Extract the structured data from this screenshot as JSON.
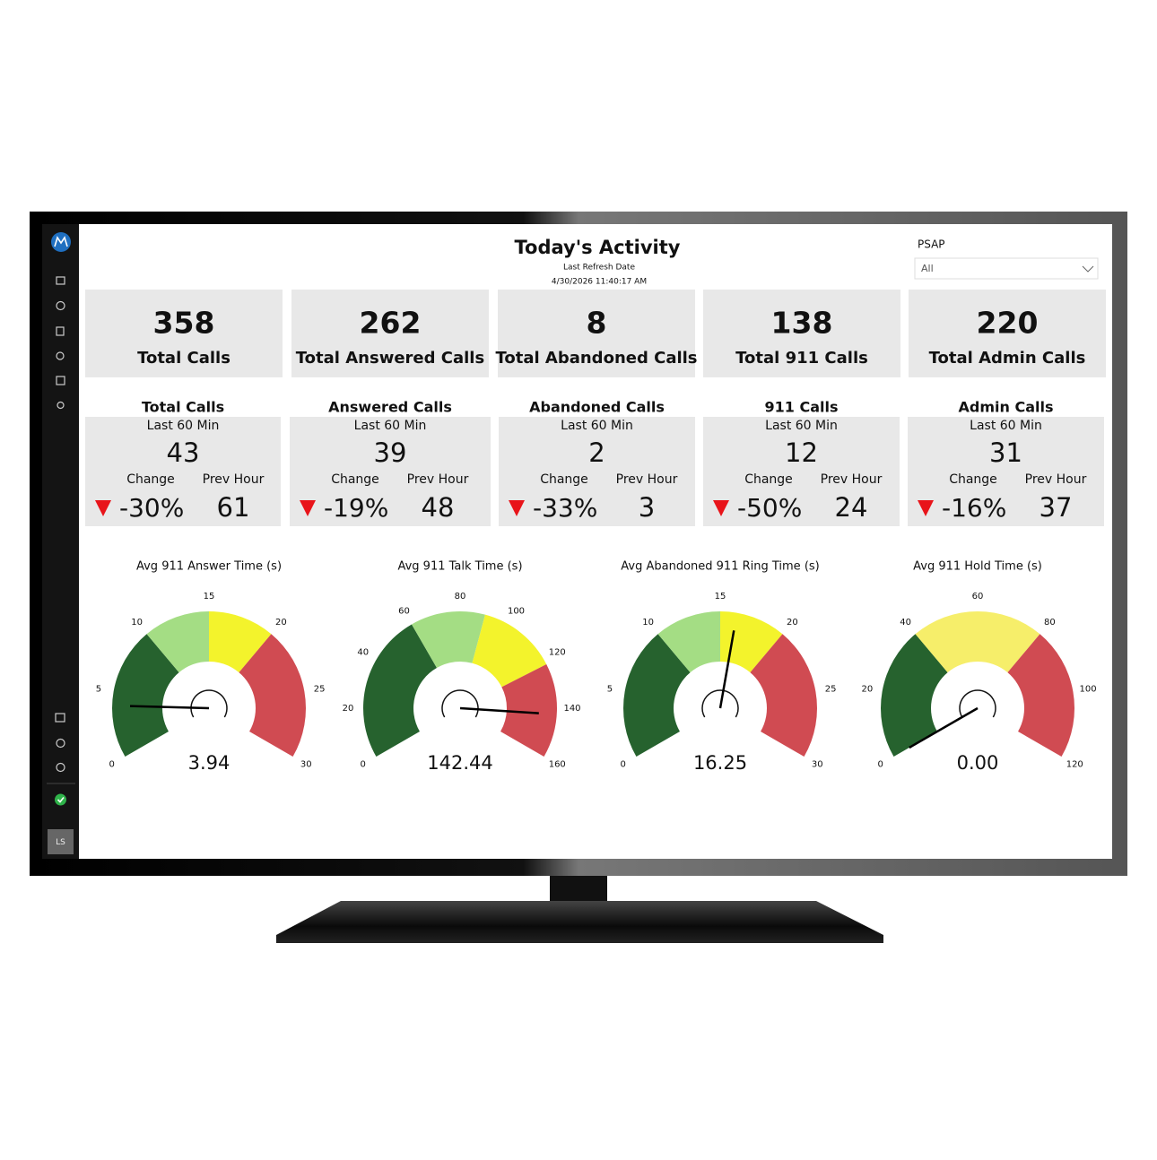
{
  "header": {
    "title": "Today's Activity",
    "refresh_label": "Last Refresh Date",
    "refresh_date": "4/30/2026 11:40:17 AM"
  },
  "filter": {
    "label": "PSAP",
    "value": "All"
  },
  "sidebar": {
    "user_initials": "LS"
  },
  "kpis": [
    {
      "value": 358,
      "label": "Total Calls"
    },
    {
      "value": 262,
      "label": "Total Answered Calls"
    },
    {
      "value": 8,
      "label": "Total Abandoned Calls"
    },
    {
      "value": 138,
      "label": "Total 911 Calls"
    },
    {
      "value": 220,
      "label": "Total Admin Calls"
    }
  ],
  "hourly": [
    {
      "title": "Total Calls",
      "subtitle": "Last 60 Min",
      "value": 43,
      "change_label": "Change",
      "prev_label": "Prev Hour",
      "change": "-30%",
      "prev": 61
    },
    {
      "title": "Answered Calls",
      "subtitle": "Last 60 Min",
      "value": 39,
      "change_label": "Change",
      "prev_label": "Prev Hour",
      "change": "-19%",
      "prev": 48
    },
    {
      "title": "Abandoned Calls",
      "subtitle": "Last 60 Min",
      "value": 2,
      "change_label": "Change",
      "prev_label": "Prev Hour",
      "change": "-33%",
      "prev": 3
    },
    {
      "title": "911 Calls",
      "subtitle": "Last 60 Min",
      "value": 12,
      "change_label": "Change",
      "prev_label": "Prev Hour",
      "change": "-50%",
      "prev": 24
    },
    {
      "title": "Admin Calls",
      "subtitle": "Last 60 Min",
      "value": 31,
      "change_label": "Change",
      "prev_label": "Prev Hour",
      "change": "-16%",
      "prev": 37
    }
  ],
  "chart_data": [
    {
      "type": "gauge",
      "title": "Avg 911 Answer Time (s)",
      "values": [
        3.94
      ],
      "lim": [
        0,
        30
      ],
      "ticks": [
        0,
        5,
        10,
        15,
        20,
        25,
        30
      ],
      "bands": [
        {
          "from": 0,
          "to": 10,
          "color": "#26622e"
        },
        {
          "from": 10,
          "to": 15,
          "color": "#a4dd84"
        },
        {
          "from": 15,
          "to": 20,
          "color": "#f3f32c"
        },
        {
          "from": 20,
          "to": 30,
          "color": "#d04b52"
        }
      ]
    },
    {
      "type": "gauge",
      "title": "Avg 911 Talk Time (s)",
      "values": [
        142.44
      ],
      "lim": [
        0,
        160
      ],
      "ticks": [
        0,
        20,
        40,
        60,
        80,
        100,
        120,
        140,
        160
      ],
      "bands": [
        {
          "from": 0,
          "to": 60,
          "color": "#26622e"
        },
        {
          "from": 60,
          "to": 90,
          "color": "#a4dd84"
        },
        {
          "from": 90,
          "to": 122,
          "color": "#f3f32c"
        },
        {
          "from": 122,
          "to": 160,
          "color": "#d04b52"
        }
      ]
    },
    {
      "type": "gauge",
      "title": "Avg Abandoned 911 Ring Time (s)",
      "values": [
        16.25
      ],
      "lim": [
        0,
        30
      ],
      "ticks": [
        0,
        5,
        10,
        15,
        20,
        25,
        30
      ],
      "bands": [
        {
          "from": 0,
          "to": 10,
          "color": "#26622e"
        },
        {
          "from": 10,
          "to": 15,
          "color": "#a4dd84"
        },
        {
          "from": 15,
          "to": 20,
          "color": "#f3f32c"
        },
        {
          "from": 20,
          "to": 30,
          "color": "#d04b52"
        }
      ]
    },
    {
      "type": "gauge",
      "title": "Avg 911 Hold Time (s)",
      "values": [
        0
      ],
      "value_labels": [
        "0.00"
      ],
      "lim": [
        0,
        120
      ],
      "ticks": [
        0,
        20,
        40,
        60,
        80,
        100,
        120
      ],
      "bands": [
        {
          "from": 0,
          "to": 40,
          "color": "#26622e"
        },
        {
          "from": 40,
          "to": 80,
          "color": "#f6ee6a"
        },
        {
          "from": 80,
          "to": 120,
          "color": "#d04b52"
        }
      ]
    }
  ]
}
